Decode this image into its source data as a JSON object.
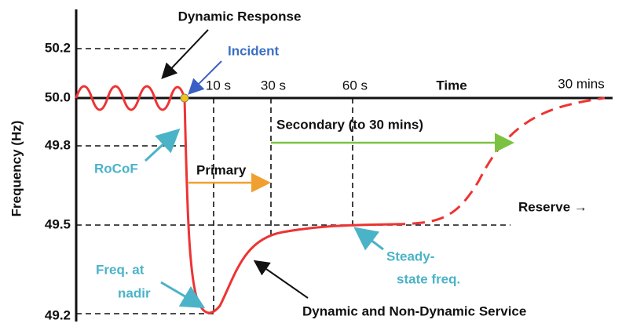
{
  "title": "Dynamic Response",
  "y_axis": {
    "label": "Frequency (Hz)",
    "ticks": [
      "50.2",
      "50.0",
      "49.8",
      "49.5",
      "49.2"
    ]
  },
  "x_axis": {
    "label": "Time",
    "ticks": [
      "10 s",
      "30 s",
      "60 s",
      "30 mins"
    ]
  },
  "annotations": {
    "incident": "Incident",
    "rocof": "RoCoF",
    "primary": "Primary",
    "secondary": "Secondary (to 30 mins)",
    "reserve": "Reserve →",
    "nadir": [
      "Freq. at",
      "nadir"
    ],
    "steady": [
      "Steady-",
      "state freq."
    ],
    "service": "Dynamic and Non-Dynamic Service"
  }
}
